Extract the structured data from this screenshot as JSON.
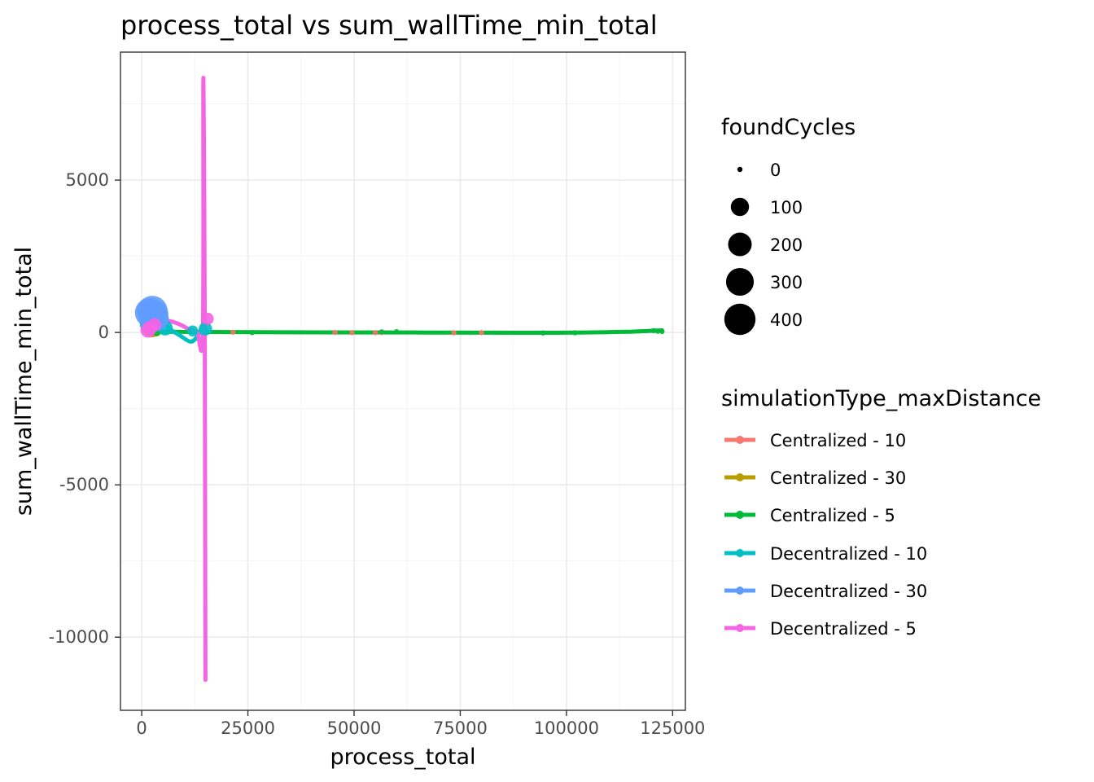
{
  "chart_data": {
    "type": "scatter",
    "title": "process_total  vs  sum_wallTime_min_total",
    "xlabel": "process_total",
    "ylabel": "sum_wallTime_min_total",
    "xlim": [
      -5000,
      128000
    ],
    "ylim": [
      -12400,
      9200
    ],
    "xticks": [
      0,
      25000,
      50000,
      75000,
      100000,
      125000
    ],
    "xtick_labels": [
      "0",
      "25000",
      "50000",
      "75000",
      "100000",
      "125000"
    ],
    "yticks": [
      -10000,
      -5000,
      0,
      5000
    ],
    "ytick_labels": [
      "-10000",
      "-5000",
      "0",
      "5000"
    ],
    "grid": true,
    "size_legend": {
      "title": "foundCycles",
      "entries": [
        {
          "label": "0",
          "value": 0
        },
        {
          "label": "100",
          "value": 100
        },
        {
          "label": "200",
          "value": 200
        },
        {
          "label": "300",
          "value": 300
        },
        {
          "label": "400",
          "value": 400
        }
      ]
    },
    "color_legend": {
      "title": "simulationType_maxDistance",
      "placement": "right"
    },
    "series": [
      {
        "name": "Centralized - 10",
        "color": "#F8766D",
        "points": [
          [
            1500,
            15,
            5
          ],
          [
            21500,
            10,
            0
          ],
          [
            45500,
            0,
            0
          ],
          [
            49500,
            -5,
            0
          ],
          [
            55000,
            -5,
            0
          ],
          [
            56500,
            0,
            0
          ],
          [
            73500,
            -10,
            0
          ],
          [
            80000,
            -5,
            0
          ]
        ],
        "smooth": []
      },
      {
        "name": "Centralized - 30",
        "color": "#B79F00",
        "points": [
          [
            2000,
            40,
            20
          ],
          [
            2500,
            60,
            40
          ],
          [
            3500,
            30,
            10
          ]
        ],
        "smooth": [
          [
            1800,
            40
          ],
          [
            2800,
            50
          ],
          [
            3800,
            30
          ]
        ]
      },
      {
        "name": "Centralized - 5",
        "color": "#00BA38",
        "points": [
          [
            3500,
            10,
            5
          ],
          [
            26000,
            -5,
            0
          ],
          [
            56500,
            20,
            0
          ],
          [
            60000,
            25,
            0
          ],
          [
            94500,
            -15,
            0
          ],
          [
            102000,
            -10,
            0
          ],
          [
            120500,
            60,
            0
          ],
          [
            121500,
            40,
            0
          ],
          [
            122500,
            30,
            0
          ]
        ],
        "smooth": [
          [
            3000,
            25
          ],
          [
            20000,
            15
          ],
          [
            40000,
            5
          ],
          [
            60000,
            0
          ],
          [
            80000,
            -8
          ],
          [
            95000,
            -10
          ],
          [
            105000,
            0
          ],
          [
            115000,
            25
          ],
          [
            122500,
            70
          ]
        ]
      },
      {
        "name": "Decentralized - 10",
        "color": "#00BFC4",
        "points": [
          [
            2000,
            300,
            150
          ],
          [
            2500,
            550,
            250
          ],
          [
            3500,
            450,
            200
          ],
          [
            5500,
            150,
            60
          ],
          [
            12000,
            50,
            20
          ],
          [
            15000,
            120,
            40
          ]
        ],
        "smooth": [
          [
            1500,
            100
          ],
          [
            3000,
            400
          ],
          [
            5000,
            320
          ],
          [
            7000,
            80
          ],
          [
            9000,
            -100
          ],
          [
            11500,
            -300
          ],
          [
            13000,
            -150
          ],
          [
            14000,
            80
          ],
          [
            15000,
            120
          ]
        ]
      },
      {
        "name": "Decentralized - 30",
        "color": "#619CFF",
        "points": [
          [
            1800,
            650,
            330
          ],
          [
            2500,
            700,
            380
          ],
          [
            3000,
            600,
            300
          ],
          [
            3500,
            450,
            220
          ]
        ],
        "smooth": [
          [
            1500,
            400
          ],
          [
            2500,
            650
          ],
          [
            3500,
            500
          ]
        ]
      },
      {
        "name": "Decentralized - 5",
        "color": "#F564E3",
        "points": [
          [
            1500,
            80,
            60
          ],
          [
            2000,
            150,
            40
          ],
          [
            3000,
            250,
            40
          ],
          [
            15500,
            450,
            30
          ]
        ],
        "smooth": [
          [
            1500,
            80
          ],
          [
            3000,
            280
          ],
          [
            5000,
            380
          ],
          [
            7000,
            360
          ],
          [
            9000,
            260
          ],
          [
            11000,
            120
          ],
          [
            13000,
            20
          ],
          [
            14400,
            0
          ],
          [
            14500,
            8200
          ],
          [
            14700,
            5000
          ],
          [
            14850,
            0
          ],
          [
            15000,
            -11400
          ]
        ]
      }
    ]
  }
}
